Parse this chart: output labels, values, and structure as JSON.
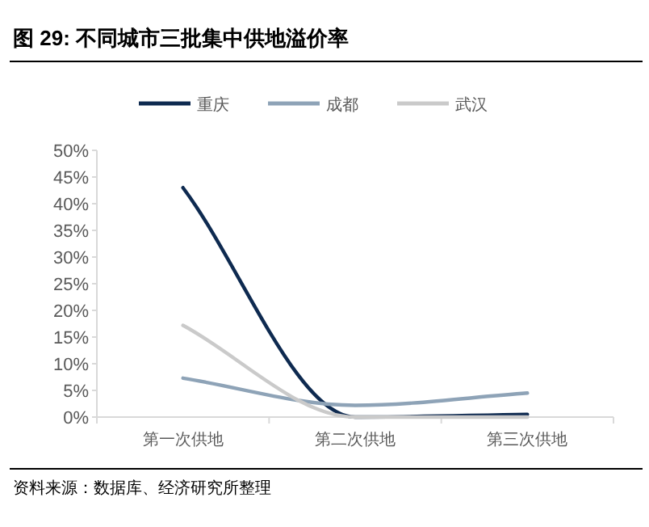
{
  "chart_data": {
    "type": "line",
    "title": "图 29:  不同城市三批集中供地溢价率",
    "categories": [
      "第一次供地",
      "第二次供地",
      "第三次供地"
    ],
    "series": [
      {
        "name": "重庆",
        "color": "#0e2a50",
        "values": [
          43,
          0,
          0.5
        ]
      },
      {
        "name": "成都",
        "color": "#8ea3b7",
        "values": [
          7.3,
          2.2,
          4.5
        ]
      },
      {
        "name": "武汉",
        "color": "#cacaca",
        "values": [
          17.2,
          0,
          0
        ]
      }
    ],
    "ylim": [
      0,
      50
    ],
    "yticks": [
      {
        "value": 0,
        "label": "0%"
      },
      {
        "value": 5,
        "label": "5%"
      },
      {
        "value": 10,
        "label": "10%"
      },
      {
        "value": 15,
        "label": "15%"
      },
      {
        "value": 20,
        "label": "20%"
      },
      {
        "value": 25,
        "label": "25%"
      },
      {
        "value": 30,
        "label": "30%"
      },
      {
        "value": 35,
        "label": "35%"
      },
      {
        "value": 40,
        "label": "40%"
      },
      {
        "value": 45,
        "label": "45%"
      },
      {
        "value": 50,
        "label": "50%"
      }
    ],
    "legend": "top",
    "grid": false,
    "marker": "none",
    "line_style": "solid",
    "annotations": [
      "资料来源：数据库、经济研究所整理"
    ]
  }
}
